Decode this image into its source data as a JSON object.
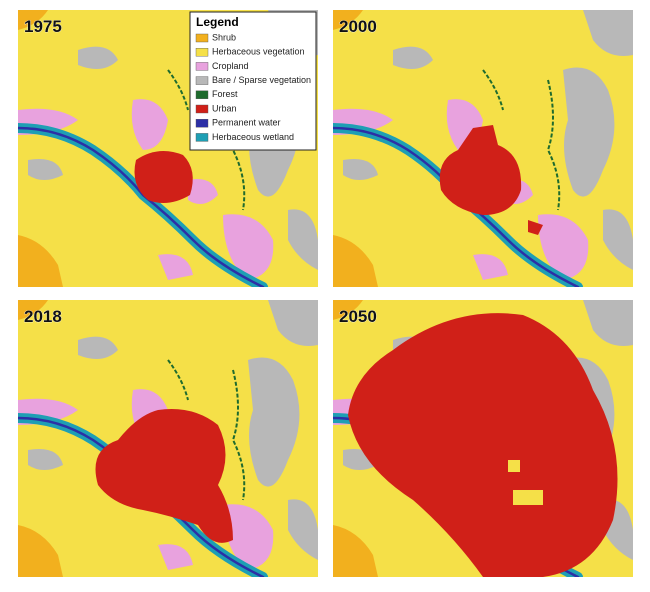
{
  "panels": [
    {
      "label": "1975"
    },
    {
      "label": "2000"
    },
    {
      "label": "2018"
    },
    {
      "label": "2050"
    }
  ],
  "legend": {
    "title": "Legend",
    "items": [
      {
        "label": "Shrub",
        "color": "#f2b01e"
      },
      {
        "label": "Herbaceous vegetation",
        "color": "#f5e048"
      },
      {
        "label": "Cropland",
        "color": "#e8a2de"
      },
      {
        "label": "Bare / Sparse vegetation",
        "color": "#b8b8b8"
      },
      {
        "label": "Forest",
        "color": "#1f6b2e"
      },
      {
        "label": "Urban",
        "color": "#d02018"
      },
      {
        "label": "Permanent water",
        "color": "#2c2fa6"
      },
      {
        "label": "Herbaceous wetland",
        "color": "#1e9fb4"
      }
    ]
  }
}
